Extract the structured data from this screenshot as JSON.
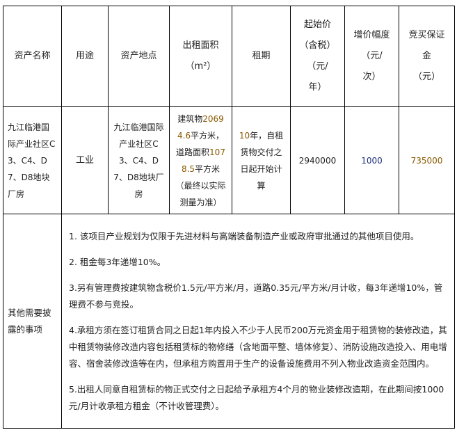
{
  "headers": {
    "asset_name": "资产名称",
    "usage": "用途",
    "asset_location": "资产地点",
    "rental_area": "出租面积",
    "rental_area_unit": "（m²）",
    "lease_term": "租期",
    "start_price_1": "起始价",
    "start_price_2": "（含税）",
    "start_price_3": "（元/",
    "start_price_4": "年）",
    "increment_1": "增价幅度",
    "increment_2": "（元/",
    "increment_3": "次）",
    "deposit_1": "竞买保证",
    "deposit_2": "金",
    "deposit_3": "（元）"
  },
  "row": {
    "asset_name": "九江临港国际产业社区C3、C4、D7、D8地块厂房",
    "usage": "工业",
    "asset_location": "九江临港国际产业社区C3、C4、D7、D8地块厂房",
    "area_prefix": "建筑物",
    "area_building": "20694.6",
    "area_mid": "平方米，道路面积",
    "area_road": "1078.5",
    "area_suffix": "平方米（最终以实际测量为准）",
    "term_years": "10",
    "term_suffix": "年，自租赁物交付之日起开始计算",
    "start_price": "2940000",
    "increment": "1000",
    "deposit": "735000"
  },
  "notes": {
    "label": "其他需要披露的事项",
    "items": [
      "1. 该项目产业规划为仅限于先进材料与高端装备制造产业或政府审批通过的其他项目使用。",
      "2. 租金每3年递增10%。",
      "3.另有管理费按建筑物含税价1.5元/平方米/月，道路0.35元/平方米/月计收，每3年递增10%，管理费不参与竞投。",
      "4.承租方须在签订租赁合同之日起1年内投入不少于人民币200万元资金用于租赁物的装修改造，其中租赁物装修改造内容包括租赁标的物修缮（含地面平整、墙体修复）、消防设施改造投入、用电增容、宿舍装修改造等在内，但承租方购置用于生产的设备设施费用不列入物业改造资金范围内。",
      "5.出租人同意自租赁标的物正式交付之日起给予承租方4个月的物业装修改造期，在此期间按1000元/月计收承租方租金（不计收管理费）。"
    ]
  }
}
